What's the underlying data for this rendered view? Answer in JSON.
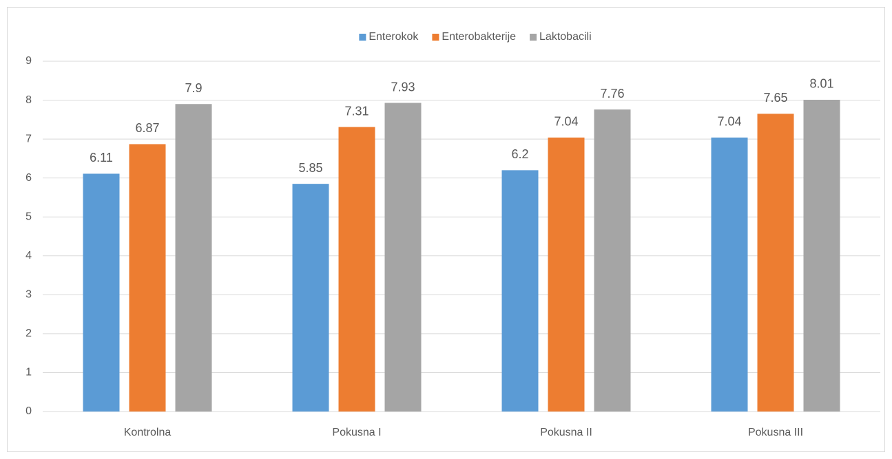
{
  "chart_data": {
    "type": "bar",
    "categories": [
      "Kontrolna",
      "Pokusna I",
      "Pokusna II",
      "Pokusna III"
    ],
    "series": [
      {
        "name": "Enterokok",
        "color": "#5b9bd5",
        "values": [
          6.11,
          5.85,
          6.2,
          7.04
        ]
      },
      {
        "name": "Enterobakterije",
        "color": "#ed7d31",
        "values": [
          6.87,
          7.31,
          7.04,
          7.65
        ]
      },
      {
        "name": "Laktobacili",
        "color": "#a5a5a5",
        "values": [
          7.9,
          7.93,
          7.76,
          8.01
        ]
      }
    ],
    "ylim": [
      0,
      9
    ],
    "yticks": [
      0,
      1,
      2,
      3,
      4,
      5,
      6,
      7,
      8,
      9
    ],
    "grid": true,
    "legend": "top"
  }
}
